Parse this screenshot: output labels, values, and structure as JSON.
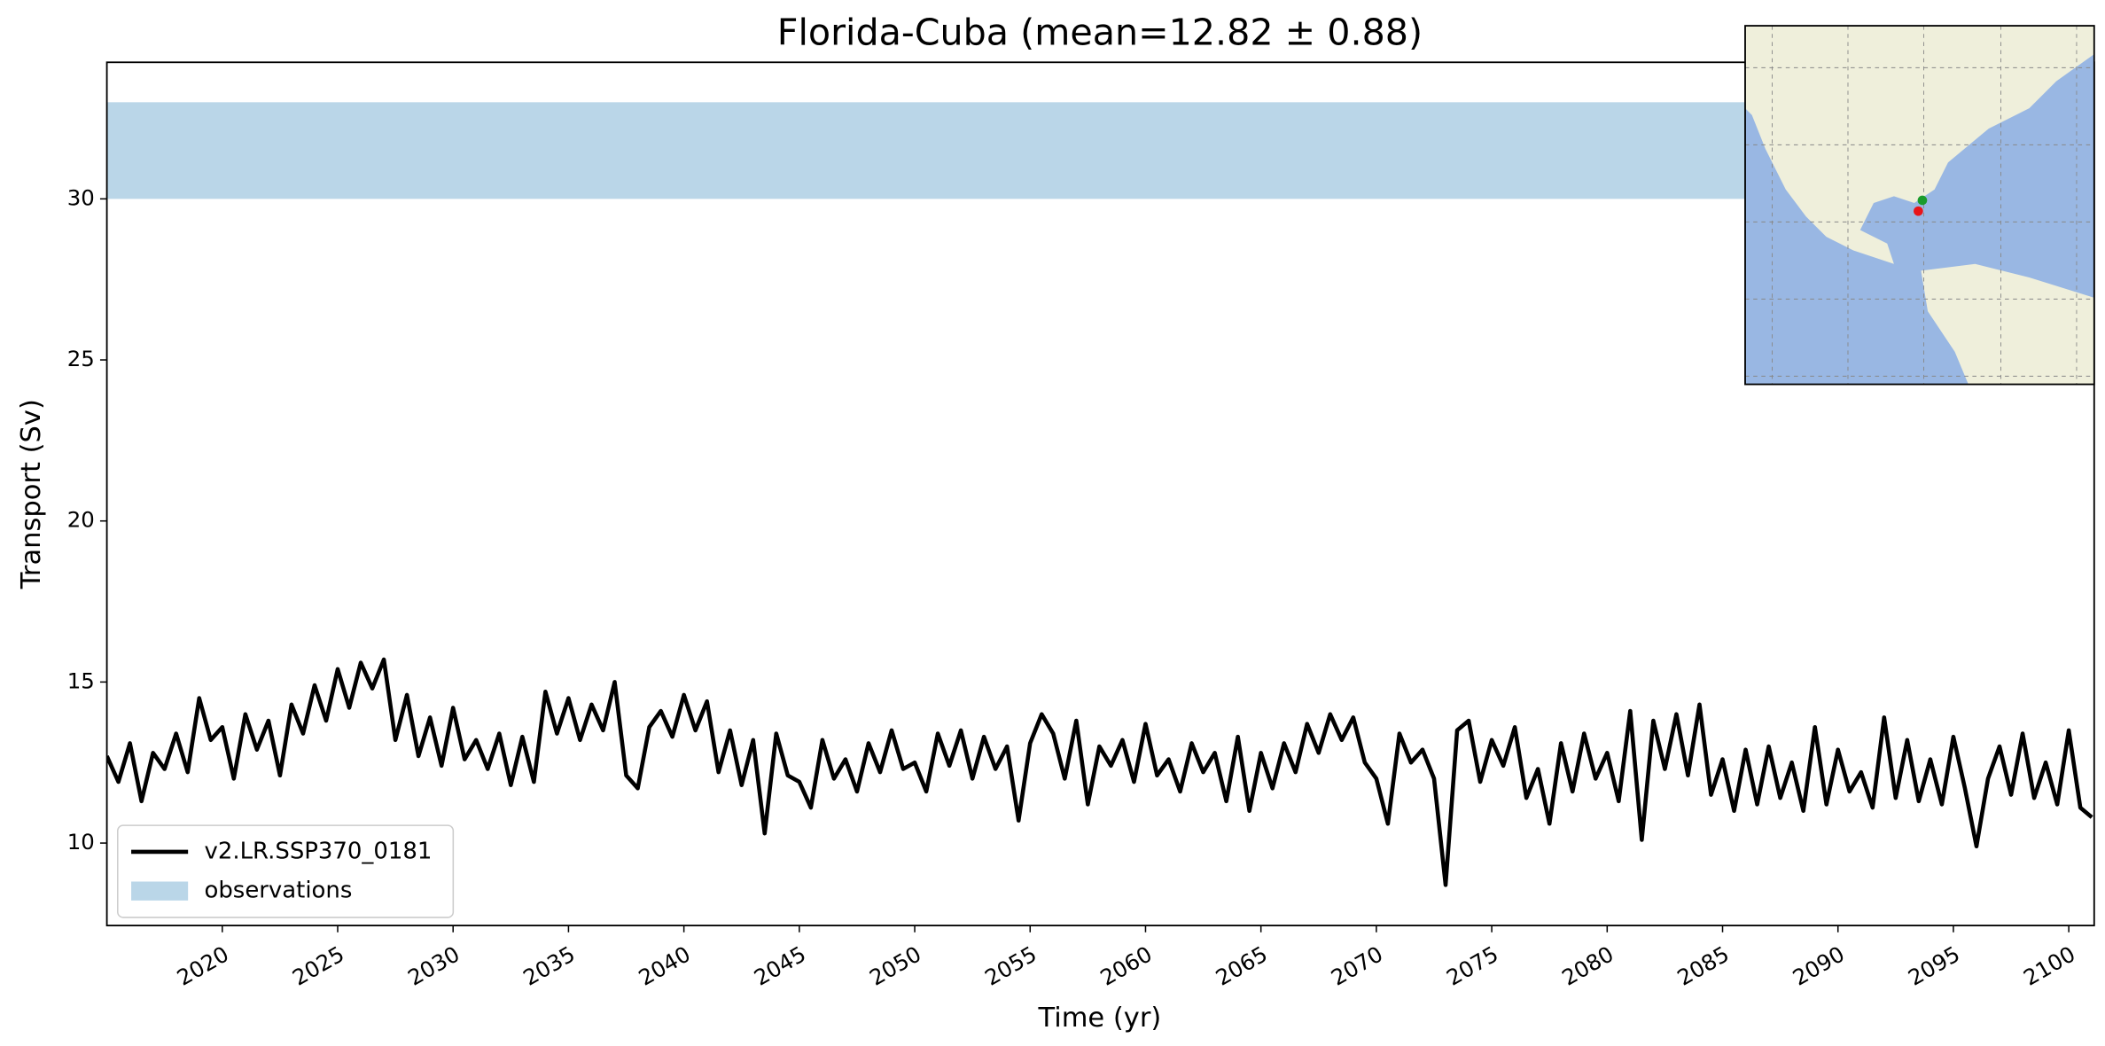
{
  "chart_data": {
    "type": "line",
    "title": "Florida-Cuba (mean=12.82 ± 0.88)",
    "x_label": "Time (yr)",
    "y_label": "Transport (Sv)",
    "x": [
      2015,
      2015.5,
      2016,
      2016.5,
      2017,
      2017.5,
      2018,
      2018.5,
      2019,
      2019.5,
      2020,
      2020.5,
      2021,
      2021.5,
      2022,
      2022.5,
      2023,
      2023.5,
      2024,
      2024.5,
      2025,
      2025.5,
      2026,
      2026.5,
      2027,
      2027.5,
      2028,
      2028.5,
      2029,
      2029.5,
      2030,
      2030.5,
      2031,
      2031.5,
      2032,
      2032.5,
      2033,
      2033.5,
      2034,
      2034.5,
      2035,
      2035.5,
      2036,
      2036.5,
      2037,
      2037.5,
      2038,
      2038.5,
      2039,
      2039.5,
      2040,
      2040.5,
      2041,
      2041.5,
      2042,
      2042.5,
      2043,
      2043.5,
      2044,
      2044.5,
      2045,
      2045.5,
      2046,
      2046.5,
      2047,
      2047.5,
      2048,
      2048.5,
      2049,
      2049.5,
      2050,
      2050.5,
      2051,
      2051.5,
      2052,
      2052.5,
      2053,
      2053.5,
      2054,
      2054.5,
      2055,
      2055.5,
      2056,
      2056.5,
      2057,
      2057.5,
      2058,
      2058.5,
      2059,
      2059.5,
      2060,
      2060.5,
      2061,
      2061.5,
      2062,
      2062.5,
      2063,
      2063.5,
      2064,
      2064.5,
      2065,
      2065.5,
      2066,
      2066.5,
      2067,
      2067.5,
      2068,
      2068.5,
      2069,
      2069.5,
      2070,
      2070.5,
      2071,
      2071.5,
      2072,
      2072.5,
      2073,
      2073.5,
      2074,
      2074.5,
      2075,
      2075.5,
      2076,
      2076.5,
      2077,
      2077.5,
      2078,
      2078.5,
      2079,
      2079.5,
      2080,
      2080.5,
      2081,
      2081.5,
      2082,
      2082.5,
      2083,
      2083.5,
      2084,
      2084.5,
      2085,
      2085.5,
      2086,
      2086.5,
      2087,
      2087.5,
      2088,
      2088.5,
      2089,
      2089.5,
      2090,
      2090.5,
      2091,
      2091.5,
      2092,
      2092.5,
      2093,
      2093.5,
      2094,
      2094.5,
      2095,
      2095.5,
      2096,
      2096.5,
      2097,
      2097.5,
      2098,
      2098.5,
      2099,
      2099.5,
      2100,
      2100.5,
      2101
    ],
    "series": [
      {
        "name": "v2.LR.SSP370_0181",
        "color": "#000000",
        "values": [
          12.7,
          11.9,
          13.1,
          11.3,
          12.8,
          12.3,
          13.4,
          12.2,
          14.5,
          13.2,
          13.6,
          12.0,
          14.0,
          12.9,
          13.8,
          12.1,
          14.3,
          13.4,
          14.9,
          13.8,
          15.4,
          14.2,
          15.6,
          14.8,
          15.7,
          13.2,
          14.6,
          12.7,
          13.9,
          12.4,
          14.2,
          12.6,
          13.2,
          12.3,
          13.4,
          11.8,
          13.3,
          11.9,
          14.7,
          13.4,
          14.5,
          13.2,
          14.3,
          13.5,
          15.0,
          12.1,
          11.7,
          13.6,
          14.1,
          13.3,
          14.6,
          13.5,
          14.4,
          12.2,
          13.5,
          11.8,
          13.2,
          10.3,
          13.4,
          12.1,
          11.9,
          11.1,
          13.2,
          12.0,
          12.6,
          11.6,
          13.1,
          12.2,
          13.5,
          12.3,
          12.5,
          11.6,
          13.4,
          12.4,
          13.5,
          12.0,
          13.3,
          12.3,
          13.0,
          10.7,
          13.1,
          14.0,
          13.4,
          12.0,
          13.8,
          11.2,
          13.0,
          12.4,
          13.2,
          11.9,
          13.7,
          12.1,
          12.6,
          11.6,
          13.1,
          12.2,
          12.8,
          11.3,
          13.3,
          11.0,
          12.8,
          11.7,
          13.1,
          12.2,
          13.7,
          12.8,
          14.0,
          13.2,
          13.9,
          12.5,
          12.0,
          10.6,
          13.4,
          12.5,
          12.9,
          12.0,
          8.7,
          13.5,
          13.8,
          11.9,
          13.2,
          12.4,
          13.6,
          11.4,
          12.3,
          10.6,
          13.1,
          11.6,
          13.4,
          12.0,
          12.8,
          11.3,
          14.1,
          10.1,
          13.8,
          12.3,
          14.0,
          12.1,
          14.3,
          11.5,
          12.6,
          11.0,
          12.9,
          11.2,
          13.0,
          11.4,
          12.5,
          11.0,
          13.6,
          11.2,
          12.9,
          11.6,
          12.2,
          11.1,
          13.9,
          11.4,
          13.2,
          11.3,
          12.6,
          11.2,
          13.3,
          11.7,
          9.9,
          12.0,
          13.0,
          11.5,
          13.4,
          11.4,
          12.5,
          11.2,
          13.5,
          11.1,
          10.8
        ]
      }
    ],
    "bands": [
      {
        "name": "observations",
        "color": "#bad6e8",
        "range": [
          30,
          33
        ]
      }
    ],
    "xlim": [
      2015,
      2101.1
    ],
    "ylim": [
      7.44,
      34.24
    ],
    "xticks": [
      2020,
      2025,
      2030,
      2035,
      2040,
      2045,
      2050,
      2055,
      2060,
      2065,
      2070,
      2075,
      2080,
      2085,
      2090,
      2095,
      2100
    ],
    "yticks": [
      10,
      15,
      20,
      25,
      30
    ],
    "legend": "lower left"
  }
}
